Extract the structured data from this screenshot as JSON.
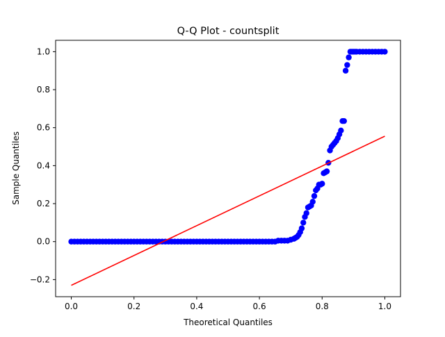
{
  "chart_data": {
    "type": "scatter",
    "title": "Q-Q Plot - countsplit",
    "xlabel": "Theoretical Quantiles",
    "ylabel": "Sample Quantiles",
    "xlim": [
      -0.05,
      1.05
    ],
    "ylim": [
      -0.29,
      1.06
    ],
    "xticks": [
      {
        "value": 0.0,
        "label": "0.0"
      },
      {
        "value": 0.2,
        "label": "0.2"
      },
      {
        "value": 0.4,
        "label": "0.4"
      },
      {
        "value": 0.6,
        "label": "0.6"
      },
      {
        "value": 0.8,
        "label": "0.8"
      },
      {
        "value": 1.0,
        "label": "1.0"
      }
    ],
    "yticks": [
      {
        "value": -0.2,
        "label": "−0.2"
      },
      {
        "value": 0.0,
        "label": "0.0"
      },
      {
        "value": 0.2,
        "label": "0.2"
      },
      {
        "value": 0.4,
        "label": "0.4"
      },
      {
        "value": 0.6,
        "label": "0.6"
      },
      {
        "value": 0.8,
        "label": "0.8"
      },
      {
        "value": 1.0,
        "label": "1.0"
      }
    ],
    "grid": false,
    "series": [
      {
        "kind": "points",
        "color": "#0000ff",
        "x": [
          0.0,
          0.01,
          0.02,
          0.03,
          0.04,
          0.05,
          0.06,
          0.07,
          0.08,
          0.09,
          0.1,
          0.11,
          0.12,
          0.13,
          0.14,
          0.15,
          0.16,
          0.17,
          0.18,
          0.19,
          0.2,
          0.21,
          0.22,
          0.23,
          0.24,
          0.25,
          0.26,
          0.27,
          0.28,
          0.29,
          0.3,
          0.31,
          0.32,
          0.33,
          0.34,
          0.35,
          0.36,
          0.37,
          0.38,
          0.39,
          0.4,
          0.41,
          0.42,
          0.43,
          0.44,
          0.45,
          0.46,
          0.47,
          0.48,
          0.49,
          0.5,
          0.51,
          0.52,
          0.53,
          0.54,
          0.55,
          0.56,
          0.57,
          0.58,
          0.59,
          0.6,
          0.61,
          0.62,
          0.63,
          0.64,
          0.65,
          0.66,
          0.67,
          0.68,
          0.69,
          0.7,
          0.71,
          0.715,
          0.72,
          0.725,
          0.73,
          0.735,
          0.74,
          0.745,
          0.75,
          0.755,
          0.76,
          0.765,
          0.77,
          0.775,
          0.78,
          0.785,
          0.79,
          0.795,
          0.8,
          0.805,
          0.81,
          0.815,
          0.82,
          0.825,
          0.83,
          0.835,
          0.84,
          0.845,
          0.85,
          0.855,
          0.86,
          0.865,
          0.87,
          0.875,
          0.88,
          0.885,
          0.89,
          0.895,
          0.9,
          0.905,
          0.91,
          0.92,
          0.93,
          0.94,
          0.95,
          0.96,
          0.97,
          0.98,
          0.99,
          1.0
        ],
        "y": [
          0.0,
          0.0,
          0.0,
          0.0,
          0.0,
          0.0,
          0.0,
          0.0,
          0.0,
          0.0,
          0.0,
          0.0,
          0.0,
          0.0,
          0.0,
          0.0,
          0.0,
          0.0,
          0.0,
          0.0,
          0.0,
          0.0,
          0.0,
          0.0,
          0.0,
          0.0,
          0.0,
          0.0,
          0.0,
          0.0,
          0.0,
          0.0,
          0.0,
          0.0,
          0.0,
          0.0,
          0.0,
          0.0,
          0.0,
          0.0,
          0.0,
          0.0,
          0.0,
          0.0,
          0.0,
          0.0,
          0.0,
          0.0,
          0.0,
          0.0,
          0.0,
          0.0,
          0.0,
          0.0,
          0.0,
          0.0,
          0.0,
          0.0,
          0.0,
          0.0,
          0.0,
          0.0,
          0.0,
          0.0,
          0.0,
          0.0,
          0.005,
          0.005,
          0.005,
          0.005,
          0.01,
          0.015,
          0.02,
          0.025,
          0.035,
          0.05,
          0.07,
          0.1,
          0.13,
          0.15,
          0.18,
          0.185,
          0.19,
          0.21,
          0.24,
          0.27,
          0.28,
          0.3,
          0.3,
          0.305,
          0.36,
          0.365,
          0.37,
          0.415,
          0.48,
          0.5,
          0.51,
          0.52,
          0.53,
          0.545,
          0.565,
          0.585,
          0.635,
          0.635,
          0.9,
          0.93,
          0.97,
          1.0,
          1.0,
          1.0,
          1.0,
          1.0,
          1.0,
          1.0,
          1.0,
          1.0,
          1.0,
          1.0,
          1.0,
          1.0,
          1.0
        ]
      },
      {
        "kind": "line",
        "color": "#ff0000",
        "x": [
          0.0,
          1.0
        ],
        "y": [
          -0.23,
          0.555
        ]
      }
    ]
  }
}
